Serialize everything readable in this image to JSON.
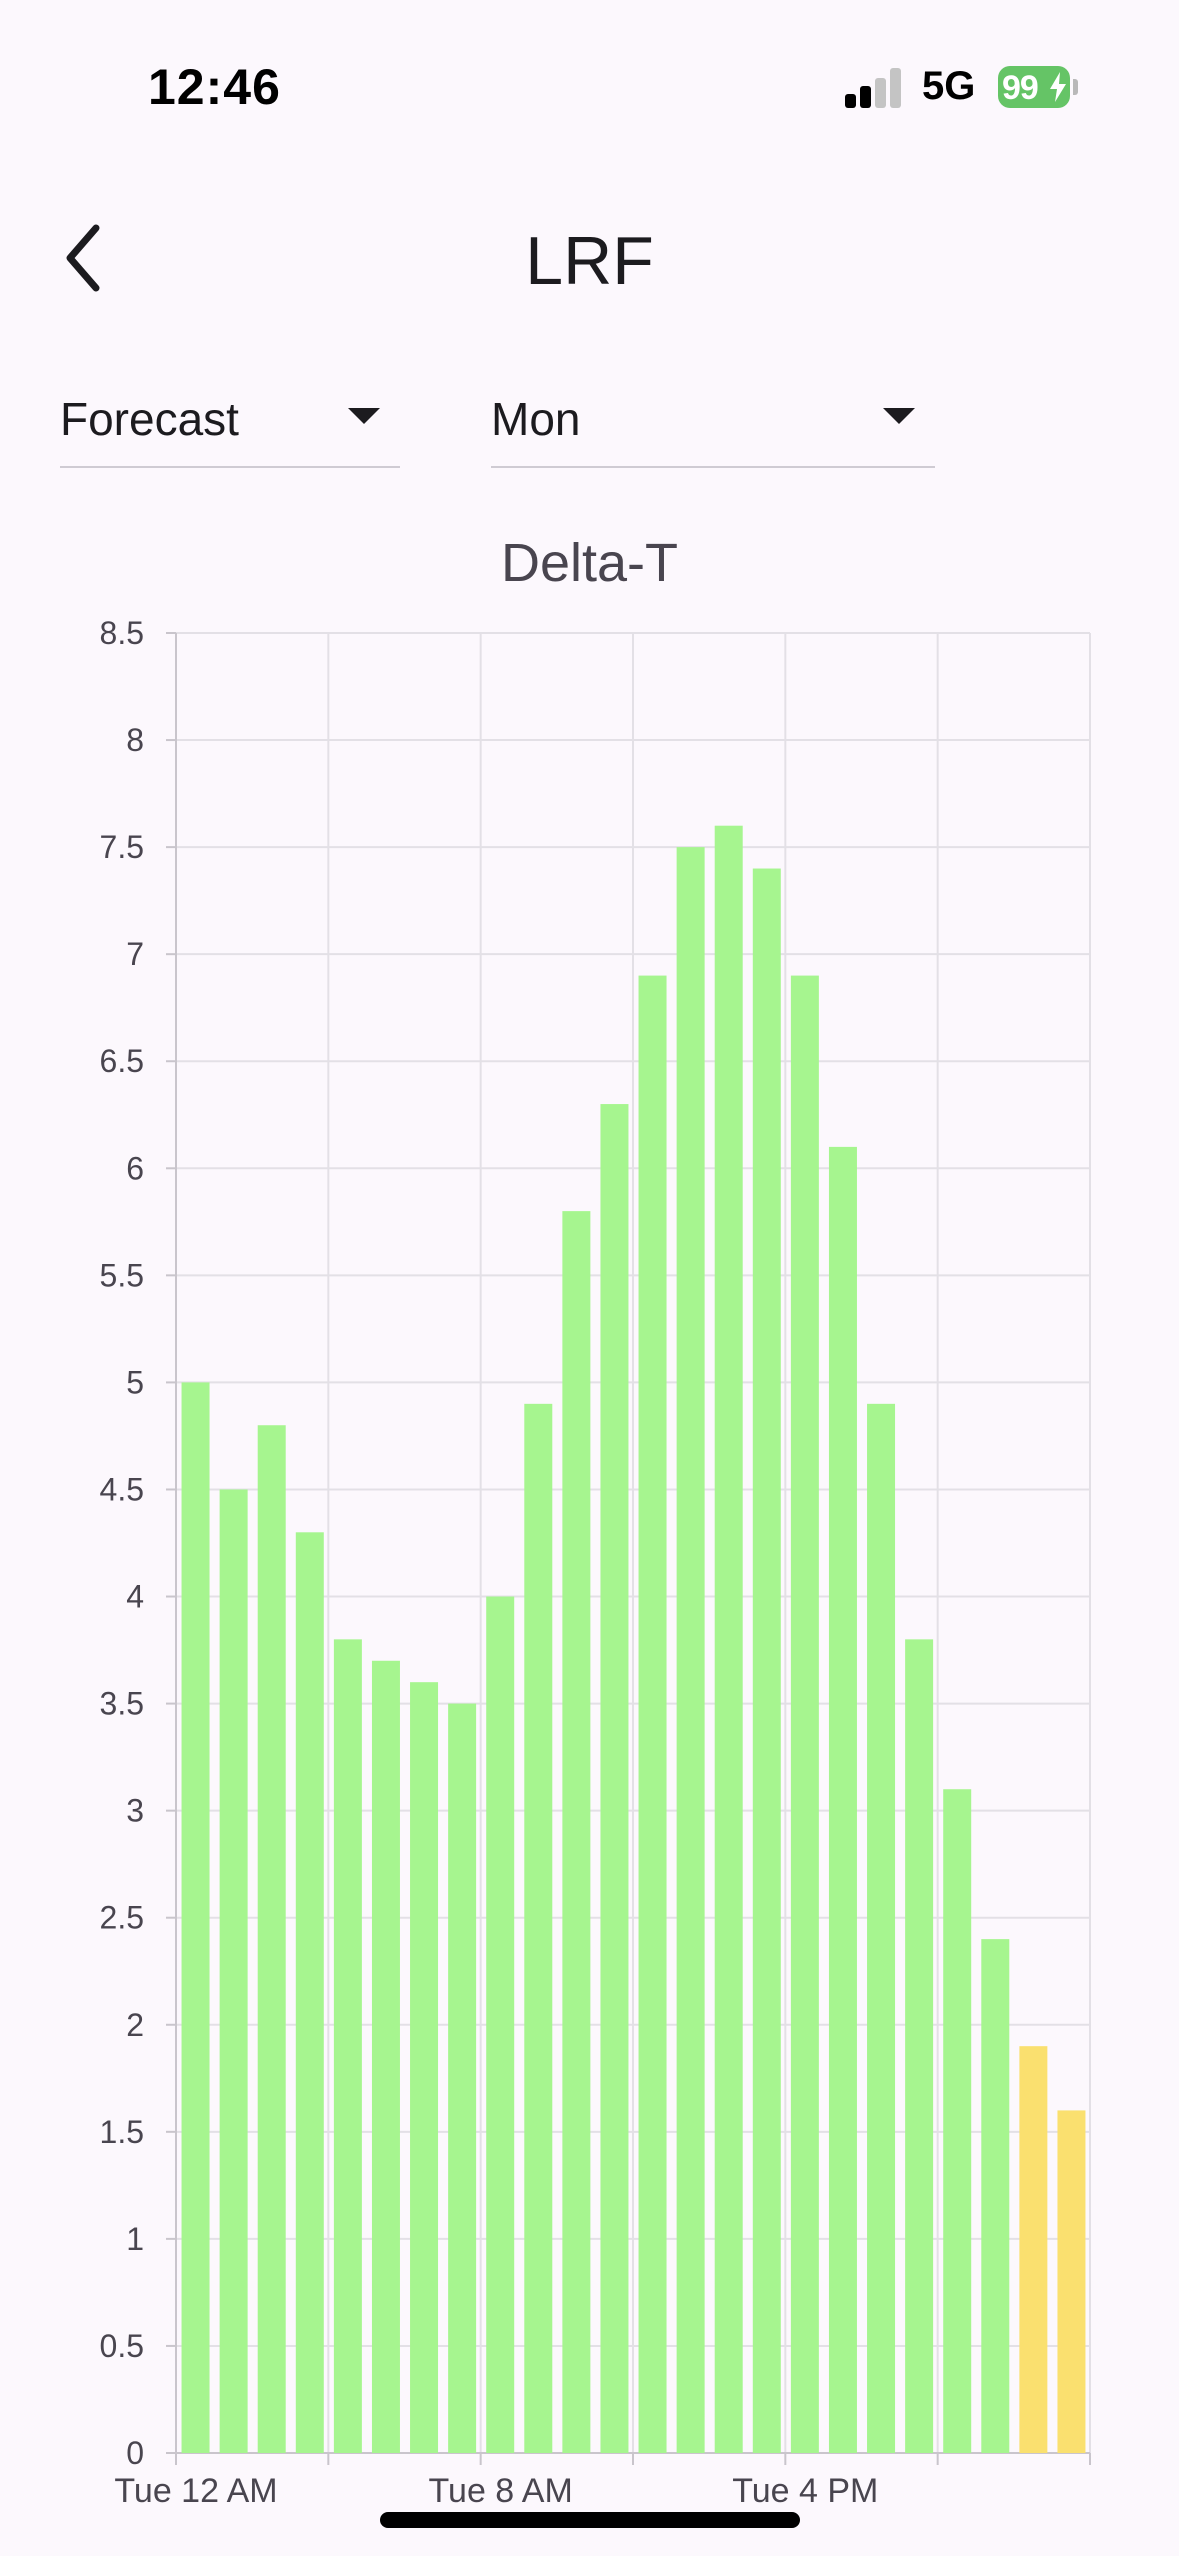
{
  "status_bar": {
    "time": "12:46",
    "network": "5G",
    "battery": "99",
    "battery_color": "#65c466"
  },
  "header": {
    "title": "LRF",
    "back_icon": "chevron-left-icon"
  },
  "filters": {
    "view": "Forecast",
    "day": "Mon"
  },
  "chart_data": {
    "type": "bar",
    "title": "Delta-T",
    "ylim": [
      0,
      8.5
    ],
    "yticks": [
      "0",
      "0.5",
      "1",
      "1.5",
      "2",
      "2.5",
      "3",
      "3.5",
      "4",
      "4.5",
      "5",
      "5.5",
      "6",
      "6.5",
      "7",
      "7.5",
      "8",
      "8.5"
    ],
    "xtick_labels": [
      "Tue 12 AM",
      "Tue 8 AM",
      "Tue 4 PM"
    ],
    "grid": true,
    "values": [
      5.0,
      4.5,
      4.8,
      4.3,
      3.8,
      3.7,
      3.6,
      3.5,
      4.0,
      4.9,
      5.8,
      6.3,
      6.9,
      7.5,
      7.6,
      7.4,
      6.9,
      6.1,
      4.9,
      3.8,
      3.1,
      2.4,
      1.9,
      1.6
    ],
    "bar_colors": [
      "#a6f58f",
      "#a6f58f",
      "#a6f58f",
      "#a6f58f",
      "#a6f58f",
      "#a6f58f",
      "#a6f58f",
      "#a6f58f",
      "#a6f58f",
      "#a6f58f",
      "#a6f58f",
      "#a6f58f",
      "#a6f58f",
      "#a6f58f",
      "#a6f58f",
      "#a6f58f",
      "#a6f58f",
      "#a6f58f",
      "#a6f58f",
      "#a6f58f",
      "#a6f58f",
      "#a6f58f",
      "#fae06f",
      "#fae06f"
    ]
  }
}
